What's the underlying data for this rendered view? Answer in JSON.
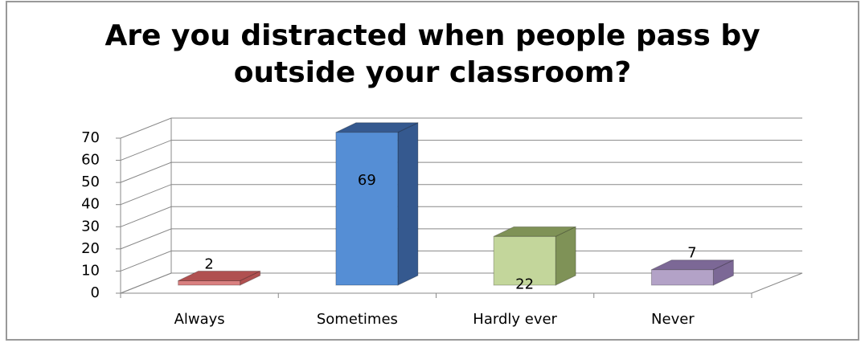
{
  "chart_data": {
    "type": "bar3d",
    "title": "Are you distracted when people pass by outside your classroom?",
    "categories": [
      "Always",
      "Sometimes",
      "Hardly ever",
      "Never"
    ],
    "values": [
      2,
      69,
      22,
      7
    ],
    "colors": [
      "#d98080",
      "#558ed5",
      "#c3d69b",
      "#b3a2c7"
    ],
    "side_colors": [
      "#b05050",
      "#35598f",
      "#7f9257",
      "#7c6896"
    ],
    "ylim": [
      0,
      70
    ],
    "yticks": [
      0,
      10,
      20,
      30,
      40,
      50,
      60,
      70
    ],
    "grid": true
  }
}
